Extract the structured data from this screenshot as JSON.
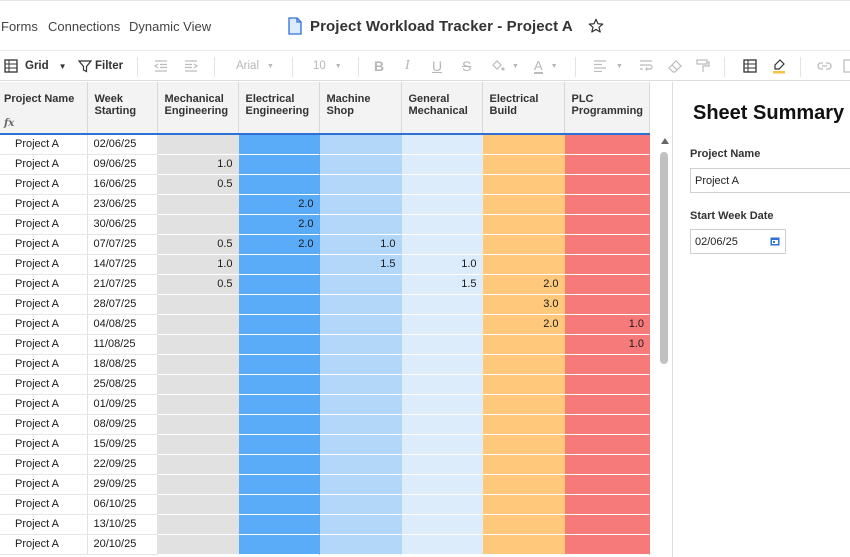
{
  "nav": {
    "forms": "Forms",
    "connections": "Connections",
    "dynamic_view": "Dynamic View"
  },
  "title": "Project Workload Tracker - Project A",
  "toolbar": {
    "view": "Grid",
    "filter": "Filter",
    "font": "Arial",
    "size": "10"
  },
  "icons": [
    "doc-icon",
    "star-icon",
    "grid-icon",
    "filter-icon",
    "outdent-icon",
    "indent-icon",
    "bold-icon",
    "italic-icon",
    "underline-icon",
    "strikethrough-icon",
    "fill-color-icon",
    "text-color-icon",
    "align-left-icon",
    "wrap-text-icon",
    "eraser-icon",
    "format-painter-icon",
    "table-icon",
    "highlight-icon",
    "link-icon"
  ],
  "colors": {
    "mechanical": "#e1e1e1",
    "electrical": "#5aacf8",
    "machine_shop": "#b3d7f9",
    "general_mechanical": "#ddecfb",
    "electrical_build": "#ffc87a",
    "plc": "#f67a79"
  },
  "columns": [
    {
      "key": "project",
      "label": "Project Name"
    },
    {
      "key": "week",
      "label": "Week Starting"
    },
    {
      "key": "mech",
      "label": "Mechanical Engineering"
    },
    {
      "key": "elec",
      "label": "Electrical Engineering"
    },
    {
      "key": "shop",
      "label": "Machine Shop"
    },
    {
      "key": "genmech",
      "label": "General Mechanical"
    },
    {
      "key": "build",
      "label": "Electrical Build"
    },
    {
      "key": "plc",
      "label": "PLC Programming"
    }
  ],
  "rows": [
    [
      "Project A",
      "02/06/25",
      "",
      "",
      "",
      "",
      "",
      ""
    ],
    [
      "Project A",
      "09/06/25",
      "1.0",
      "",
      "",
      "",
      "",
      ""
    ],
    [
      "Project A",
      "16/06/25",
      "0.5",
      "",
      "",
      "",
      "",
      ""
    ],
    [
      "Project A",
      "23/06/25",
      "",
      "2.0",
      "",
      "",
      "",
      ""
    ],
    [
      "Project A",
      "30/06/25",
      "",
      "2.0",
      "",
      "",
      "",
      ""
    ],
    [
      "Project A",
      "07/07/25",
      "0.5",
      "2.0",
      "1.0",
      "",
      "",
      ""
    ],
    [
      "Project A",
      "14/07/25",
      "1.0",
      "",
      "1.5",
      "1.0",
      "",
      ""
    ],
    [
      "Project A",
      "21/07/25",
      "0.5",
      "",
      "",
      "1.5",
      "2.0",
      ""
    ],
    [
      "Project A",
      "28/07/25",
      "",
      "",
      "",
      "",
      "3.0",
      ""
    ],
    [
      "Project A",
      "04/08/25",
      "",
      "",
      "",
      "",
      "2.0",
      "1.0"
    ],
    [
      "Project A",
      "11/08/25",
      "",
      "",
      "",
      "",
      "",
      "1.0"
    ],
    [
      "Project A",
      "18/08/25",
      "",
      "",
      "",
      "",
      "",
      ""
    ],
    [
      "Project A",
      "25/08/25",
      "",
      "",
      "",
      "",
      "",
      ""
    ],
    [
      "Project A",
      "01/09/25",
      "",
      "",
      "",
      "",
      "",
      ""
    ],
    [
      "Project A",
      "08/09/25",
      "",
      "",
      "",
      "",
      "",
      ""
    ],
    [
      "Project A",
      "15/09/25",
      "",
      "",
      "",
      "",
      "",
      ""
    ],
    [
      "Project A",
      "22/09/25",
      "",
      "",
      "",
      "",
      "",
      ""
    ],
    [
      "Project A",
      "29/09/25",
      "",
      "",
      "",
      "",
      "",
      ""
    ],
    [
      "Project A",
      "06/10/25",
      "",
      "",
      "",
      "",
      "",
      ""
    ],
    [
      "Project A",
      "13/10/25",
      "",
      "",
      "",
      "",
      "",
      ""
    ],
    [
      "Project A",
      "20/10/25",
      "",
      "",
      "",
      "",
      "",
      ""
    ]
  ],
  "summary": {
    "title": "Sheet Summary",
    "project_label": "Project Name",
    "project_value": "Project A",
    "start_label": "Start Week Date",
    "start_value": "02/06/25"
  }
}
